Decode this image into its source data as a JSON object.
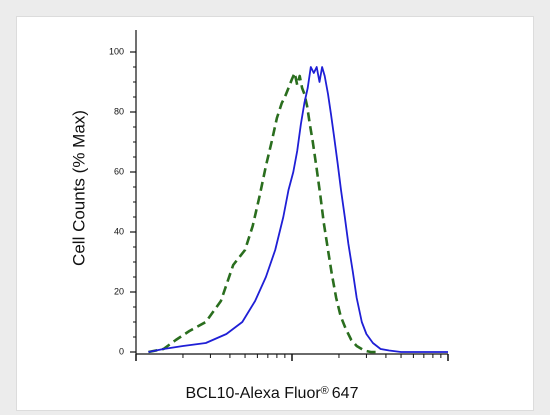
{
  "chart_data": {
    "type": "line",
    "title": "",
    "xlabel": "BCL10-Alexa Fluor",
    "xlabel_mark": "®",
    "xlabel_suffix": "647",
    "ylabel": "Cell Counts (% Max)",
    "xscale": "log",
    "xlim": [
      0.1,
      10
    ],
    "ylim": [
      0,
      105
    ],
    "y_ticks": [
      0,
      20,
      40,
      60,
      80,
      100
    ],
    "y_tick_labels": [
      "0",
      "20",
      "40",
      "60",
      "80",
      "100"
    ],
    "grid": false,
    "legend": "none",
    "series": [
      {
        "color": "#2a6e1e",
        "style": "dashed",
        "x": [
          0.12,
          0.15,
          0.18,
          0.22,
          0.28,
          0.35,
          0.42,
          0.5,
          0.56,
          0.62,
          0.68,
          0.74,
          0.8,
          0.86,
          0.9,
          0.95,
          1.0,
          1.04,
          1.08,
          1.12,
          1.16,
          1.2,
          1.25,
          1.3,
          1.36,
          1.44,
          1.52,
          1.6,
          1.7,
          1.8,
          1.92,
          2.05,
          2.2,
          2.4,
          2.6,
          2.9,
          3.2,
          3.6
        ],
        "y": [
          0,
          1,
          4,
          7,
          10,
          17,
          29,
          34,
          42,
          52,
          62,
          70,
          78,
          83,
          85,
          88,
          91,
          93,
          89,
          92,
          88,
          86,
          82,
          76,
          70,
          61,
          52,
          43,
          34,
          26,
          18,
          12,
          8,
          4,
          2,
          0.5,
          0,
          0
        ]
      },
      {
        "color": "#1f1fd6",
        "style": "solid",
        "x": [
          0.12,
          0.15,
          0.2,
          0.28,
          0.38,
          0.48,
          0.58,
          0.68,
          0.78,
          0.88,
          0.95,
          1.02,
          1.08,
          1.14,
          1.2,
          1.26,
          1.32,
          1.38,
          1.44,
          1.5,
          1.56,
          1.62,
          1.7,
          1.78,
          1.86,
          1.96,
          2.06,
          2.18,
          2.3,
          2.45,
          2.6,
          2.8,
          3.0,
          3.3,
          3.7,
          4.2,
          5.0,
          7.0,
          10.0
        ],
        "y": [
          0,
          1,
          2,
          3,
          6,
          10,
          17,
          25,
          34,
          45,
          54,
          60,
          67,
          76,
          83,
          88,
          95,
          93,
          95,
          90,
          95,
          92,
          86,
          79,
          72,
          63,
          54,
          45,
          36,
          27,
          18,
          10,
          6,
          3,
          1,
          0.5,
          0,
          0,
          0
        ]
      }
    ]
  }
}
